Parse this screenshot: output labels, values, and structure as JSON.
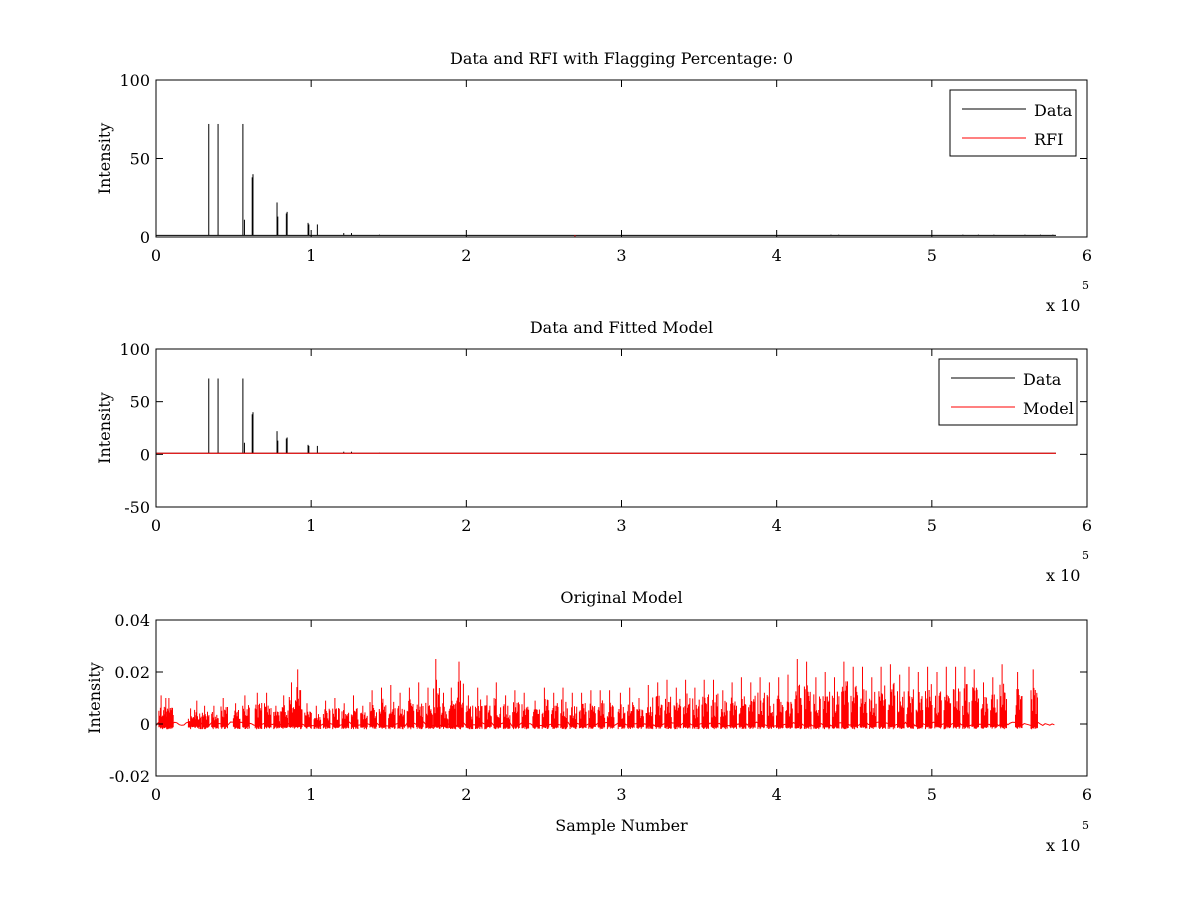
{
  "colors": {
    "data": "#000000",
    "rfi": "#ff0000",
    "model": "#ff0000",
    "axes": "#000000",
    "background": "#ffffff"
  },
  "chart_data": [
    {
      "id": "rfi",
      "type": "line",
      "title": "Data and RFI with Flagging Percentage: 0",
      "xlabel": "",
      "ylabel": "Intensity",
      "xlim": [
        0,
        600000
      ],
      "ylim": [
        0,
        100
      ],
      "xticks": [
        0,
        100000,
        200000,
        300000,
        400000,
        500000,
        600000
      ],
      "xtick_labels": [
        "0",
        "1",
        "2",
        "3",
        "4",
        "5",
        "6"
      ],
      "yticks": [
        0,
        50,
        100
      ],
      "ytick_labels": [
        "0",
        "50",
        "100"
      ],
      "x_exponent": {
        "prefix": "x 10",
        "power": "5"
      },
      "legend": {
        "location": "top-right",
        "entries": [
          "Data",
          "RFI"
        ]
      },
      "series": [
        {
          "name": "Data",
          "color": "#000000",
          "baseline": 1,
          "x_end": 580000,
          "spikes": [
            [
              34000,
              72
            ],
            [
              40000,
              72
            ],
            [
              56000,
              72
            ],
            [
              57000,
              11
            ],
            [
              62000,
              38
            ],
            [
              62500,
              40
            ],
            [
              78000,
              22
            ],
            [
              78500,
              13
            ],
            [
              84000,
              15
            ],
            [
              84500,
              16
            ],
            [
              98000,
              9
            ],
            [
              98500,
              8
            ],
            [
              104000,
              8
            ],
            [
              121000,
              2.5
            ],
            [
              126000,
              2.5
            ],
            [
              144000,
              1.5
            ],
            [
              230000,
              1.2
            ],
            [
              435000,
              1.5
            ],
            [
              440000,
              1.5
            ],
            [
              520000,
              1.5
            ],
            [
              530000,
              1.5
            ],
            [
              540000,
              1.5
            ],
            [
              560000,
              1.5
            ],
            [
              570000,
              1.5
            ],
            [
              578000,
              1.5
            ]
          ]
        },
        {
          "name": "RFI",
          "color": "#ff0000",
          "baseline": 0,
          "x_end": 580000,
          "spikes": [
            [
              270000,
              1.2
            ]
          ]
        }
      ]
    },
    {
      "id": "fit",
      "type": "line",
      "title": "Data and Fitted Model",
      "xlabel": "",
      "ylabel": "Intensity",
      "xlim": [
        0,
        600000
      ],
      "ylim": [
        -50,
        100
      ],
      "xticks": [
        0,
        100000,
        200000,
        300000,
        400000,
        500000,
        600000
      ],
      "xtick_labels": [
        "0",
        "1",
        "2",
        "3",
        "4",
        "5",
        "6"
      ],
      "yticks": [
        -50,
        0,
        50,
        100
      ],
      "ytick_labels": [
        "-50",
        "0",
        "50",
        "100"
      ],
      "x_exponent": {
        "prefix": "x 10",
        "power": "5"
      },
      "legend": {
        "location": "top-right",
        "entries": [
          "Data",
          "Model"
        ]
      },
      "series": [
        {
          "name": "Data",
          "color": "#000000",
          "baseline": 1,
          "x_end": 580000,
          "spikes": [
            [
              34000,
              72
            ],
            [
              40000,
              72
            ],
            [
              56000,
              72
            ],
            [
              57000,
              11
            ],
            [
              62000,
              38
            ],
            [
              62500,
              40
            ],
            [
              78000,
              22
            ],
            [
              78500,
              13
            ],
            [
              84000,
              15
            ],
            [
              84500,
              16
            ],
            [
              98000,
              9
            ],
            [
              98500,
              8
            ],
            [
              104000,
              8
            ],
            [
              121000,
              2.5
            ],
            [
              126000,
              2.5
            ],
            [
              144000,
              1.5
            ]
          ]
        },
        {
          "name": "Model",
          "color": "#ff0000",
          "baseline": 1,
          "x_end": 580000,
          "spikes": []
        }
      ]
    },
    {
      "id": "orig",
      "type": "line",
      "title": "Original Model",
      "xlabel": "Sample Number",
      "ylabel": "Intensity",
      "xlim": [
        0,
        600000
      ],
      "ylim": [
        -0.02,
        0.04
      ],
      "xticks": [
        0,
        100000,
        200000,
        300000,
        400000,
        500000,
        600000
      ],
      "xtick_labels": [
        "0",
        "1",
        "2",
        "3",
        "4",
        "5",
        "6"
      ],
      "yticks": [
        -0.02,
        0,
        0.02,
        0.04
      ],
      "ytick_labels": [
        "-0.02",
        "0",
        "0.02",
        "0.04"
      ],
      "x_exponent": {
        "prefix": "x 10",
        "power": "5"
      },
      "legend": null,
      "series": [
        {
          "name": "Model",
          "color": "#ff0000",
          "baseline": 0,
          "x_end": 580000,
          "noise": 0.002,
          "spikes": [
            [
              4000,
              0.011
            ],
            [
              7000,
              0.01
            ],
            [
              9000,
              0.01
            ],
            [
              23000,
              0.006
            ],
            [
              27000,
              0.009
            ],
            [
              32000,
              0.007
            ],
            [
              38000,
              0.007
            ],
            [
              44000,
              0.01
            ],
            [
              52000,
              0.008
            ],
            [
              58000,
              0.011
            ],
            [
              66000,
              0.012
            ],
            [
              72000,
              0.012
            ],
            [
              78000,
              0.007
            ],
            [
              83000,
              0.011
            ],
            [
              88000,
              0.016
            ],
            [
              92000,
              0.021
            ],
            [
              98000,
              0.008
            ],
            [
              104000,
              0.007
            ],
            [
              110000,
              0.009
            ],
            [
              116000,
              0.01
            ],
            [
              122000,
              0.008
            ],
            [
              128000,
              0.011
            ],
            [
              134000,
              0.007
            ],
            [
              140000,
              0.013
            ],
            [
              146000,
              0.014
            ],
            [
              152000,
              0.015
            ],
            [
              158000,
              0.012
            ],
            [
              164000,
              0.014
            ],
            [
              170000,
              0.016
            ],
            [
              176000,
              0.014
            ],
            [
              181000,
              0.025
            ],
            [
              186000,
              0.012
            ],
            [
              191000,
              0.014
            ],
            [
              196000,
              0.024
            ],
            [
              202000,
              0.011
            ],
            [
              208000,
              0.014
            ],
            [
              214000,
              0.011
            ],
            [
              220000,
              0.016
            ],
            [
              226000,
              0.011
            ],
            [
              232000,
              0.013
            ],
            [
              238000,
              0.012
            ],
            [
              245000,
              0.009
            ],
            [
              251000,
              0.014
            ],
            [
              257000,
              0.012
            ],
            [
              263000,
              0.014
            ],
            [
              269000,
              0.012
            ],
            [
              275000,
              0.012
            ],
            [
              281000,
              0.013
            ],
            [
              287000,
              0.013
            ],
            [
              293000,
              0.013
            ],
            [
              300000,
              0.012
            ],
            [
              306000,
              0.014
            ],
            [
              312000,
              0.01
            ],
            [
              318000,
              0.015
            ],
            [
              324000,
              0.016
            ],
            [
              330000,
              0.017
            ],
            [
              336000,
              0.014
            ],
            [
              342000,
              0.017
            ],
            [
              348000,
              0.014
            ],
            [
              354000,
              0.017
            ],
            [
              360000,
              0.017
            ],
            [
              366000,
              0.013
            ],
            [
              372000,
              0.016
            ],
            [
              378000,
              0.018
            ],
            [
              384000,
              0.016
            ],
            [
              390000,
              0.018
            ],
            [
              396000,
              0.016
            ],
            [
              402000,
              0.018
            ],
            [
              408000,
              0.019
            ],
            [
              414000,
              0.025
            ],
            [
              420000,
              0.024
            ],
            [
              426000,
              0.018
            ],
            [
              432000,
              0.02
            ],
            [
              438000,
              0.018
            ],
            [
              444000,
              0.024
            ],
            [
              450000,
              0.022
            ],
            [
              456000,
              0.022
            ],
            [
              462000,
              0.018
            ],
            [
              468000,
              0.022
            ],
            [
              474000,
              0.023
            ],
            [
              480000,
              0.019
            ],
            [
              486000,
              0.022
            ],
            [
              492000,
              0.02
            ],
            [
              498000,
              0.022
            ],
            [
              504000,
              0.02
            ],
            [
              510000,
              0.022
            ],
            [
              516000,
              0.022
            ],
            [
              522000,
              0.022
            ],
            [
              528000,
              0.021
            ],
            [
              534000,
              0.016
            ],
            [
              540000,
              0.018
            ],
            [
              546000,
              0.023
            ],
            [
              556000,
              0.02
            ],
            [
              566000,
              0.021
            ]
          ]
        }
      ]
    }
  ]
}
